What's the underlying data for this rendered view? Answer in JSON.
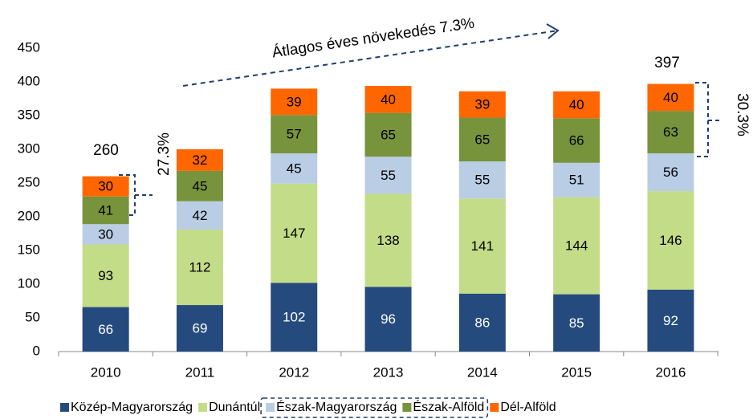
{
  "chart_data": {
    "type": "stacked_bar",
    "categories": [
      "2010",
      "2011",
      "2012",
      "2013",
      "2014",
      "2015",
      "2016"
    ],
    "series": [
      {
        "name": "Közép-Magyarország",
        "color": "#254b7e",
        "values": [
          66,
          69,
          102,
          96,
          86,
          85,
          92
        ]
      },
      {
        "name": "Dunántúl",
        "color": "#c3dc88",
        "values": [
          93,
          112,
          147,
          138,
          141,
          144,
          146
        ]
      },
      {
        "name": "Észak-Magyarország",
        "color": "#b9cde5",
        "values": [
          30,
          42,
          45,
          55,
          55,
          51,
          56
        ]
      },
      {
        "name": "Észak-Alföld",
        "color": "#77933c",
        "values": [
          41,
          45,
          57,
          65,
          65,
          66,
          63
        ]
      },
      {
        "name": "Dél-Alföld",
        "color": "#ff6600",
        "values": [
          30,
          32,
          39,
          40,
          39,
          40,
          40
        ]
      }
    ],
    "ylim": [
      0,
      450
    ],
    "yticks": [
      0,
      50,
      100,
      150,
      200,
      250,
      300,
      350,
      400,
      450
    ],
    "annotations": [
      "Átlagos éves növekedés 7.3%",
      "27.3%",
      "30.3%",
      "260",
      "397"
    ]
  }
}
